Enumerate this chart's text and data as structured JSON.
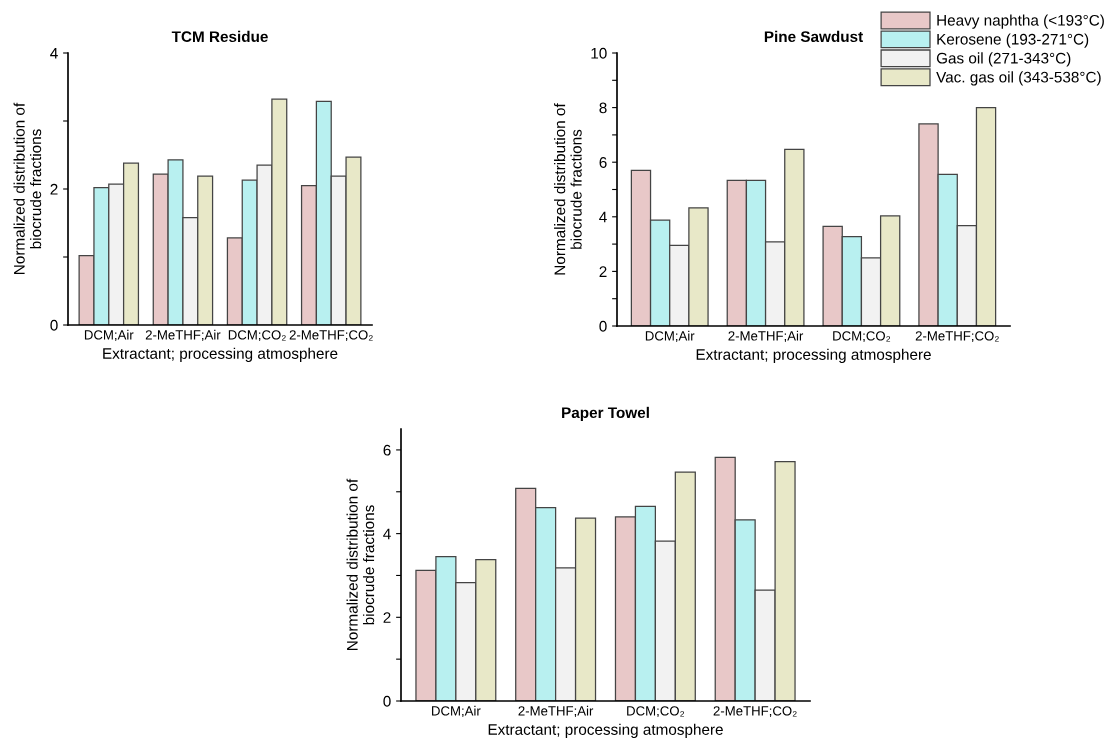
{
  "chart_data": [
    {
      "type": "bar",
      "title": "TCM Residue",
      "xlabel": "Extractant; processing atmosphere",
      "ylabel": "Normalized distribution of\nbiocrude fractions",
      "categories": [
        "DCM;Air",
        "2-MeTHF;Air",
        "DCM;CO₂",
        "2-MeTHF;CO₂"
      ],
      "series": [
        {
          "color": "#e8c8c8",
          "values": [
            1.02,
            2.22,
            1.28,
            2.05
          ]
        },
        {
          "color": "#b8f0f0",
          "values": [
            2.02,
            2.43,
            2.13,
            3.29
          ]
        },
        {
          "color": "#f2f2f2",
          "values": [
            2.07,
            1.58,
            2.35,
            2.19
          ]
        },
        {
          "color": "#e8e8c8",
          "values": [
            2.38,
            2.19,
            3.32,
            2.47
          ]
        }
      ],
      "ylim": [
        0,
        4
      ],
      "yticks": [
        0,
        {
          "value": 1,
          "label": null
        },
        2,
        {
          "value": 3,
          "label": null
        },
        4
      ],
      "grid": false,
      "legend": false
    },
    {
      "type": "bar",
      "title": "Pine Sawdust",
      "xlabel": "Extractant; processing atmosphere",
      "ylabel": "Normalized distribution of\nbiocrude fractions",
      "categories": [
        "DCM;Air",
        "2-MeTHF;Air",
        "DCM;CO₂",
        "2-MeTHF;CO₂"
      ],
      "series": [
        {
          "name": "Heavy naphtha (<193°C)",
          "color": "#e8c8c8",
          "values": [
            5.7,
            5.33,
            3.65,
            7.4
          ]
        },
        {
          "name": "Kerosene (193-271°C)",
          "color": "#b8f0f0",
          "values": [
            3.88,
            5.33,
            3.27,
            5.55
          ]
        },
        {
          "name": "Gas oil (271-343°C)",
          "color": "#f2f2f2",
          "values": [
            2.95,
            3.08,
            2.5,
            3.68
          ]
        },
        {
          "name": "Vac. gas oil (343-538°C)",
          "color": "#e8e8c8",
          "values": [
            4.33,
            6.47,
            4.03,
            8.0
          ]
        }
      ],
      "ylim": [
        0,
        10
      ],
      "yticks": [
        0,
        {
          "value": 1,
          "label": null
        },
        2,
        {
          "value": 3,
          "label": null
        },
        4,
        {
          "value": 5,
          "label": null
        },
        6,
        {
          "value": 7,
          "label": null
        },
        8,
        {
          "value": 9,
          "label": null
        },
        10
      ],
      "grid": false,
      "legend": "top right"
    },
    {
      "type": "bar",
      "title": "Paper Towel",
      "xlabel": "Extractant; processing atmosphere",
      "ylabel": "Normalized distribution of\nbiocrude fractions",
      "categories": [
        "DCM;Air",
        "2-MeTHF;Air",
        "DCM;CO₂",
        "2-MeTHF;CO₂"
      ],
      "series": [
        {
          "color": "#e8c8c8",
          "values": [
            3.12,
            5.08,
            4.4,
            5.82
          ]
        },
        {
          "color": "#b8f0f0",
          "values": [
            3.45,
            4.62,
            4.65,
            4.33
          ]
        },
        {
          "color": "#f2f2f2",
          "values": [
            2.83,
            3.18,
            3.82,
            2.65
          ]
        },
        {
          "color": "#e8e8c8",
          "values": [
            3.38,
            4.37,
            5.47,
            5.72
          ]
        }
      ],
      "ylim": [
        0,
        6.5
      ],
      "yticks": [
        0,
        {
          "value": 1,
          "label": null
        },
        2,
        {
          "value": 3,
          "label": null
        },
        4,
        {
          "value": 5,
          "label": null
        },
        6
      ],
      "grid": false,
      "legend": false
    }
  ]
}
